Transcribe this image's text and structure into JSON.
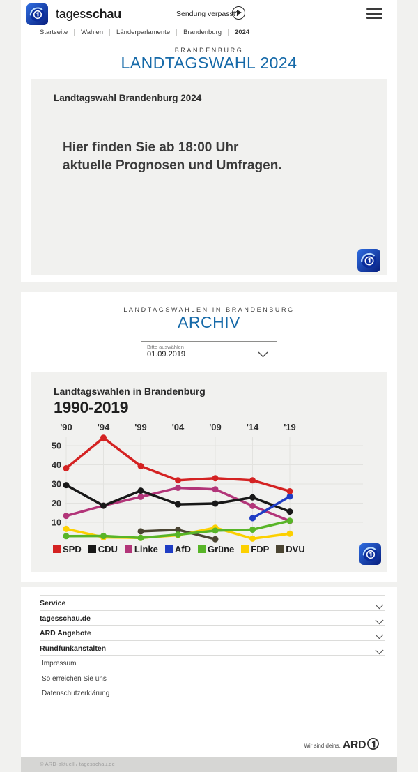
{
  "header": {
    "brand_regular": "tages",
    "brand_bold": "schau",
    "sendung_verpasst": "Sendung verpasst?"
  },
  "breadcrumb": [
    "Startseite",
    "Wahlen",
    "Länderparlamente",
    "Brandenburg",
    "2024"
  ],
  "hero": {
    "kicker": "BRANDENBURG",
    "title": "LANDTAGSWAHL 2024"
  },
  "teaser": {
    "title": "Landtagswahl Brandenburg 2024",
    "line1": "Hier finden Sie ab 18:00 Uhr",
    "line2": "aktuelle Prognosen und Umfragen."
  },
  "archive": {
    "kicker": "LANDTAGSWAHLEN IN BRANDENBURG",
    "title": "ARCHIV",
    "select_label": "Bitte auswählen",
    "select_value": "01.09.2019"
  },
  "chart_data": {
    "type": "line",
    "title": "Landtagswahlen in Brandenburg",
    "subtitle": "1990-2019",
    "categories": [
      "'90",
      "'94",
      "'99",
      "'04",
      "'09",
      "'14",
      "'19"
    ],
    "y_ticks": [
      10,
      20,
      30,
      40,
      50
    ],
    "ylim": [
      0,
      57
    ],
    "grid": true,
    "legend_position": "bottom",
    "series": [
      {
        "name": "SPD",
        "color": "#d42222",
        "values": [
          38.2,
          54.1,
          39.3,
          31.9,
          33.0,
          31.9,
          26.2
        ]
      },
      {
        "name": "CDU",
        "color": "#181818",
        "values": [
          29.4,
          18.7,
          26.5,
          19.4,
          19.8,
          23.0,
          15.6
        ]
      },
      {
        "name": "Linke",
        "color": "#b23579",
        "values": [
          13.4,
          18.7,
          23.3,
          28.0,
          27.2,
          18.6,
          10.7
        ]
      },
      {
        "name": "AfD",
        "color": "#1f3dc4",
        "values": [
          null,
          null,
          null,
          null,
          null,
          12.2,
          23.5
        ]
      },
      {
        "name": "Grüne",
        "color": "#58b528",
        "values": [
          2.8,
          2.9,
          1.9,
          3.6,
          5.7,
          6.2,
          10.8
        ]
      },
      {
        "name": "FDP",
        "color": "#fcd000",
        "values": [
          6.6,
          2.2,
          1.9,
          3.3,
          7.2,
          1.5,
          4.1
        ]
      },
      {
        "name": "DVU",
        "color": "#4a4431",
        "values": [
          null,
          null,
          5.3,
          6.1,
          1.2,
          null,
          null
        ]
      }
    ]
  },
  "footer": {
    "accordion": [
      "Service",
      "tagesschau.de",
      "ARD Angebote",
      "Rundfunkanstalten"
    ],
    "links": [
      "Impressum",
      "So erreichen Sie uns",
      "Datenschutzerklärung"
    ],
    "ard_claim": "Wir sind deins.",
    "ard_brand": "ARD",
    "copyright": "© ARD-aktuell / tagesschau.de"
  },
  "colors": {
    "accent_blue": "#1569a8",
    "page_bg": "#f1f1ef",
    "box_bg": "#f1f1ef",
    "gridline": "#e2e2df",
    "bottom_strip": "#d6d6d4"
  }
}
